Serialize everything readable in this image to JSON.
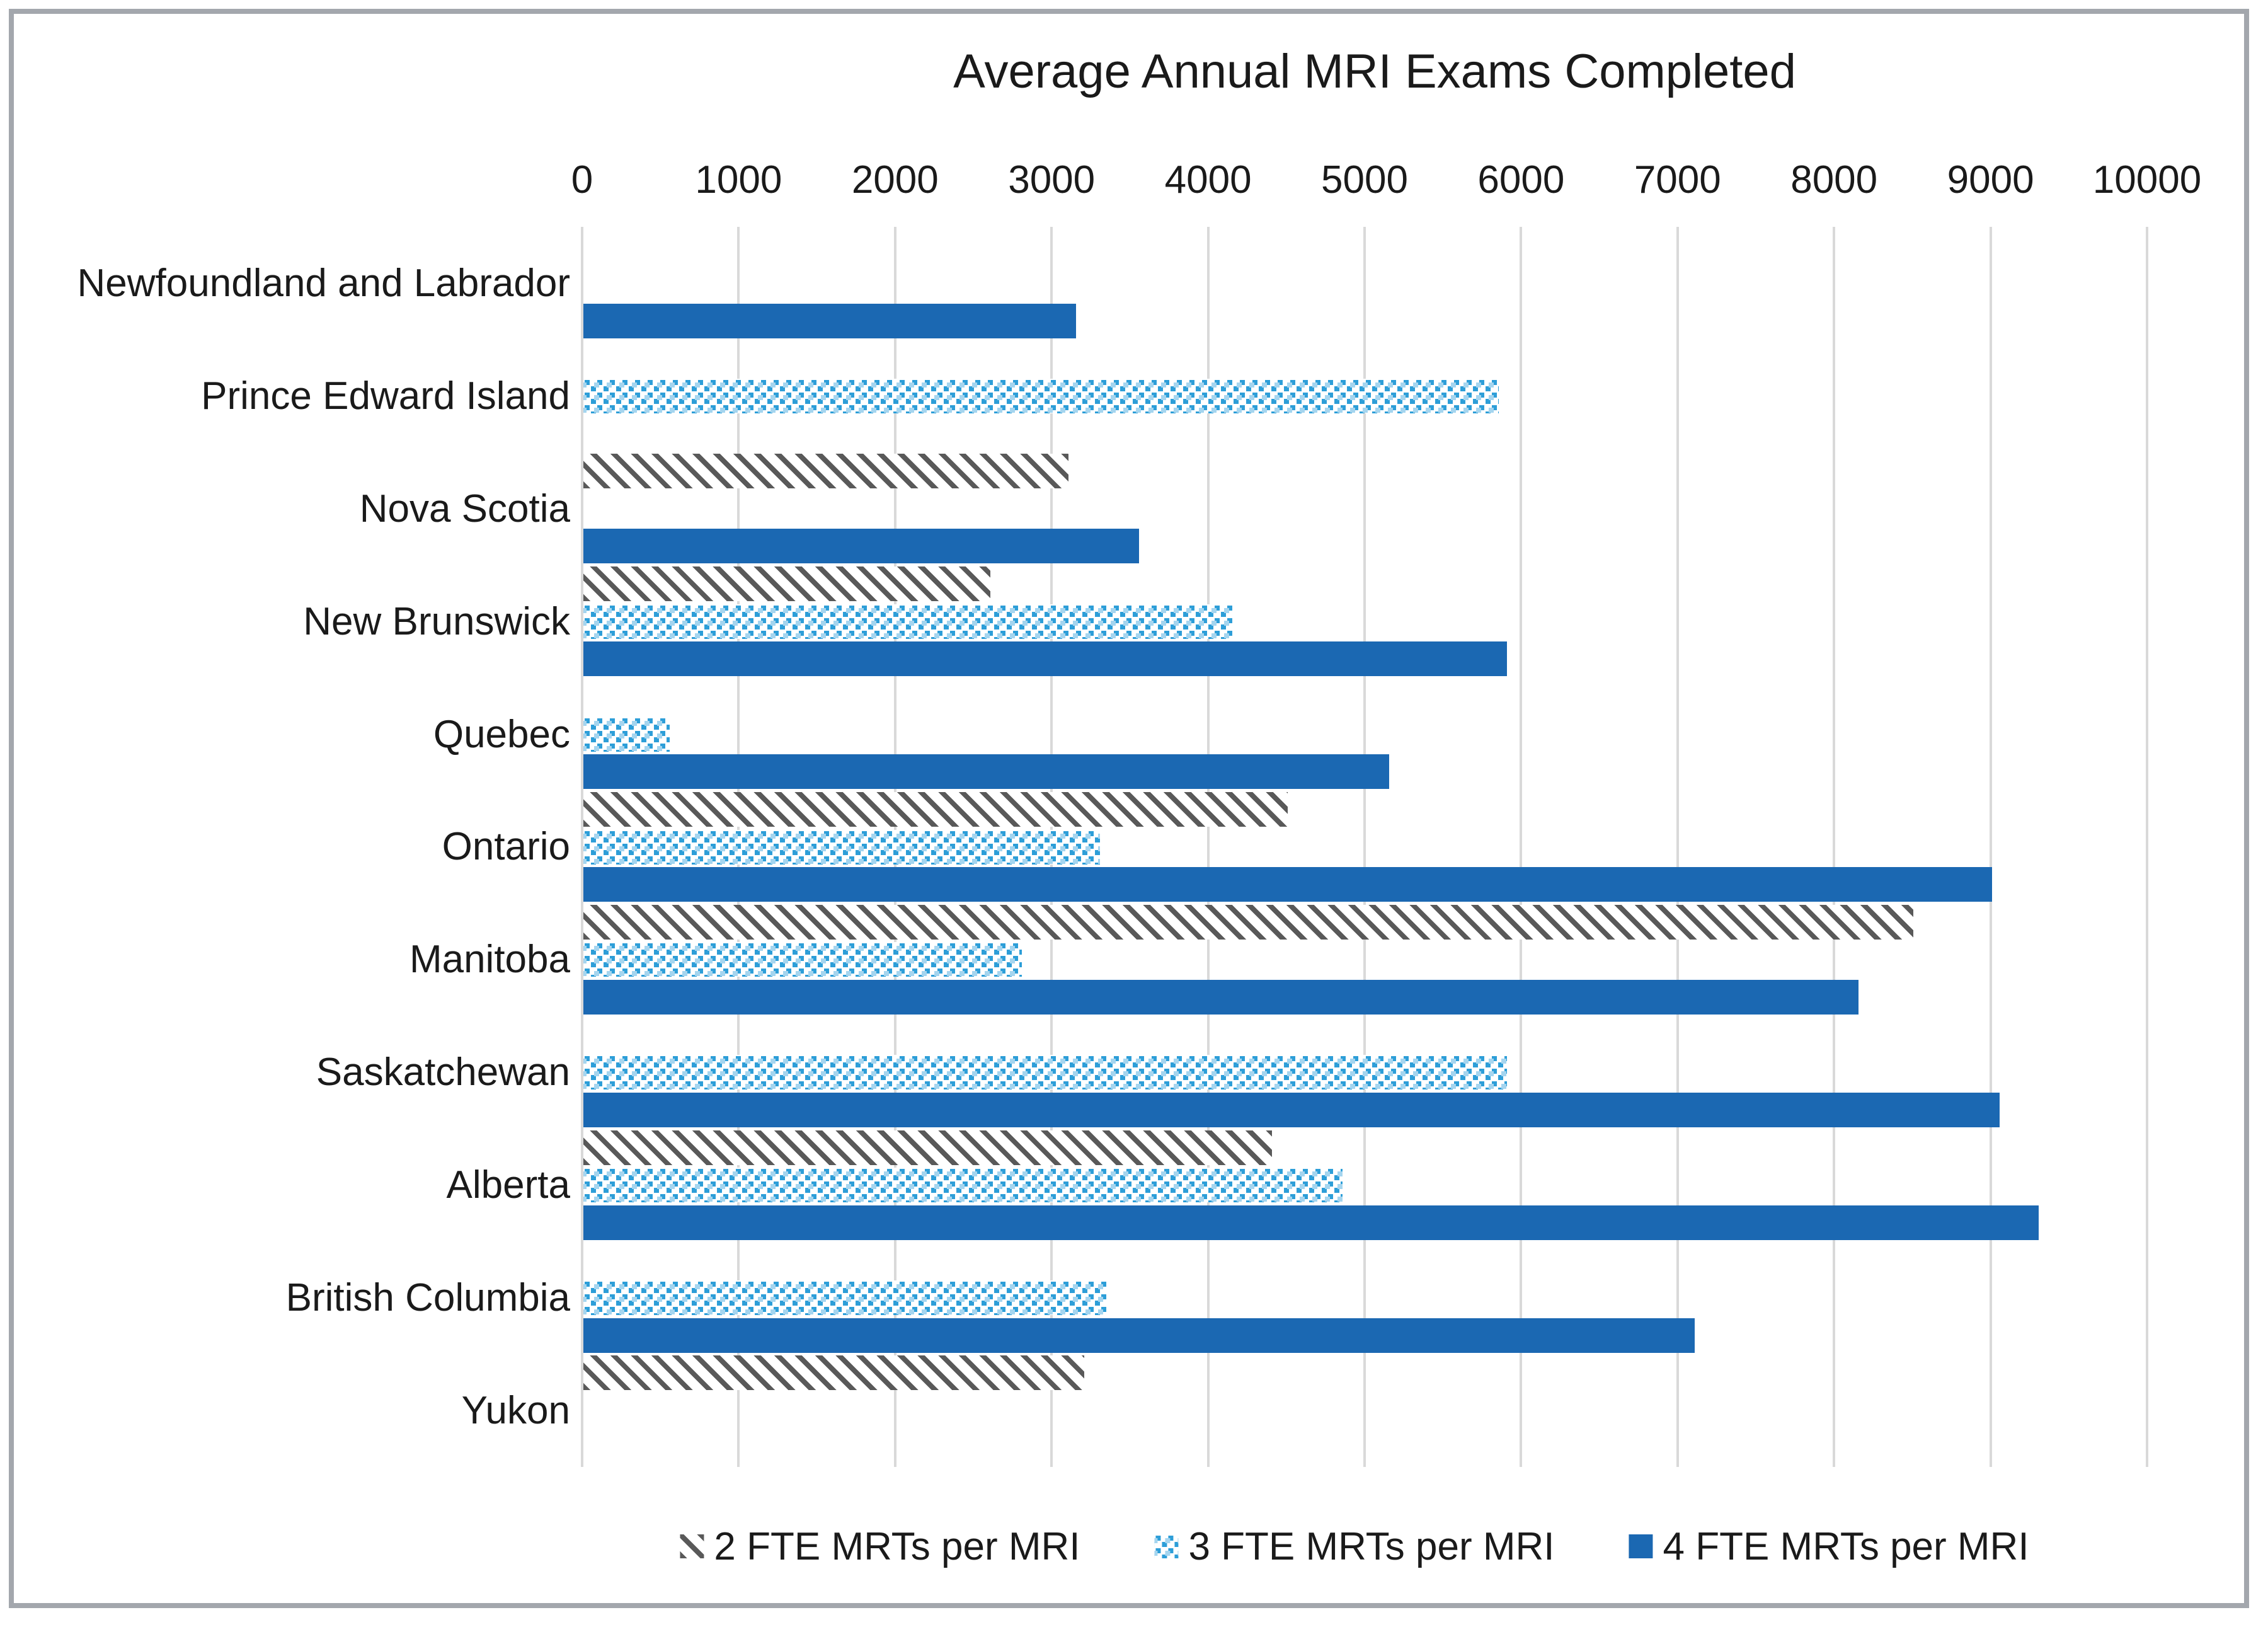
{
  "frame": {
    "border_color": "#A3A7AD",
    "background": "#FFFFFF"
  },
  "chart_data": {
    "type": "bar",
    "orientation": "horizontal",
    "title": "Average Annual MRI Exams Completed",
    "categories": [
      "Newfoundland and Labrador",
      "Prince Edward Island",
      "Nova Scotia",
      "New Brunswick",
      "Quebec",
      "Ontario",
      "Manitoba",
      "Saskatchewan",
      "Alberta",
      "British Columbia",
      "Yukon"
    ],
    "series": [
      {
        "name": "2 FTE MRTs per MRI",
        "pattern": "diagonal-hatch",
        "color": "#595959",
        "values": [
          null,
          null,
          3100,
          2600,
          null,
          4500,
          8500,
          null,
          4400,
          null,
          3200
        ]
      },
      {
        "name": "3 FTE MRTs per MRI",
        "pattern": "dotted",
        "color": "#2D9ED8",
        "values": [
          null,
          5850,
          null,
          4150,
          550,
          3300,
          2800,
          5900,
          4850,
          3350,
          null
        ]
      },
      {
        "name": "4 FTE MRTs per MRI",
        "pattern": "solid",
        "color": "#1B68B2",
        "values": [
          3150,
          null,
          3550,
          5900,
          5150,
          9000,
          8150,
          9050,
          9300,
          7100,
          null
        ]
      }
    ],
    "x_axis": {
      "min": 0,
      "max": 10000,
      "tick_interval": 1000,
      "tick_labels": [
        "0",
        "1000",
        "2000",
        "3000",
        "4000",
        "5000",
        "6000",
        "7000",
        "8000",
        "9000",
        "10000"
      ],
      "position": "top"
    },
    "gridlines": {
      "show": true,
      "color": "#D9D9D9"
    },
    "legend": {
      "position": "bottom",
      "items": [
        "2 FTE MRTs per MRI",
        "3 FTE MRTs per MRI",
        "4 FTE MRTs per MRI"
      ]
    }
  }
}
